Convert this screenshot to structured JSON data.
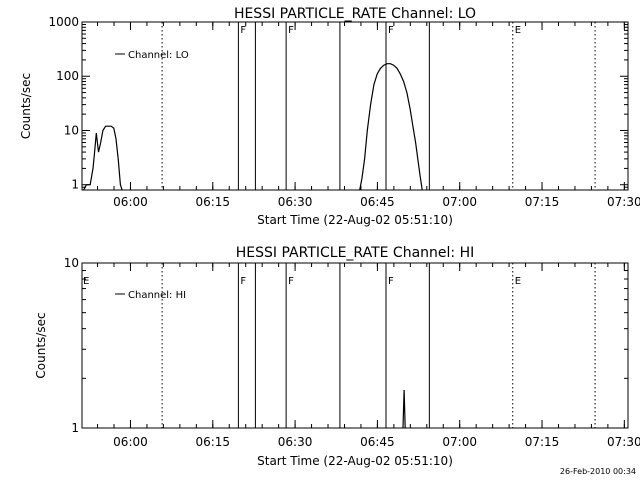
{
  "footer": {
    "timestamp": "26-Feb-2010 00:34"
  },
  "x_axis": {
    "label": "Start Time (22-Aug-02 05:51:10)",
    "range_minutes": [
      0,
      99.5
    ],
    "tick_minutes": [
      8.833,
      23.833,
      38.833,
      53.833,
      68.833,
      83.833,
      98.833
    ],
    "tick_labels": [
      "06:00",
      "06:15",
      "06:30",
      "06:45",
      "07:00",
      "07:15",
      "07:30"
    ]
  },
  "chart_data": [
    {
      "type": "line",
      "title": "HESSI PARTICLE_RATE Channel: LO",
      "ylabel": "Counts/sec",
      "xlabel": "Start Time (22-Aug-02 05:51:10)",
      "y_scale": "log",
      "ylim": [
        0.8,
        1000
      ],
      "y_ticks": [
        1,
        10,
        100,
        1000
      ],
      "y_tick_labels": [
        "1",
        "10",
        "100",
        "1000"
      ],
      "legend": {
        "label": "Channel: LO",
        "position": "top-left"
      },
      "series": [
        {
          "name": "Channel: LO",
          "x": [
            0.3,
            0.8,
            1.5,
            2.0,
            2.3,
            2.6,
            3.0,
            3.4,
            3.8,
            4.3,
            4.8,
            5.3,
            5.8,
            6.2,
            6.6,
            7.0,
            7.3,
            50.6,
            51.0,
            51.5,
            52.0,
            52.6,
            53.2,
            53.8,
            54.4,
            55.0,
            55.6,
            56.2,
            56.8,
            57.4,
            58.0,
            58.6,
            59.2,
            59.8,
            60.3,
            60.8,
            61.2,
            61.6,
            62.0
          ],
          "y": [
            0.8,
            1.0,
            1.0,
            2.0,
            4.0,
            9.0,
            4.0,
            6.0,
            10.0,
            12.0,
            12.0,
            12.0,
            11.0,
            7.0,
            3.0,
            1.0,
            0.8,
            0.8,
            1.3,
            3.0,
            10.0,
            30.0,
            70.0,
            110.0,
            140.0,
            160.0,
            170.0,
            170.0,
            160.0,
            140.0,
            110.0,
            80.0,
            50.0,
            25.0,
            12.0,
            6.0,
            3.0,
            1.5,
            0.8
          ]
        }
      ],
      "solid_markers": {
        "x": [
          28.5,
          31.6,
          37.2,
          47.0,
          55.4,
          63.3
        ],
        "labels": [
          "F",
          "",
          "F",
          "",
          "F",
          ""
        ]
      },
      "dotted_markers": {
        "x": [
          14.6,
          78.5,
          93.5
        ],
        "labels": [
          "",
          "E",
          ""
        ]
      },
      "edge_label_left": ""
    },
    {
      "type": "line",
      "title": "HESSI PARTICLE_RATE Channel: HI",
      "ylabel": "Counts/sec",
      "xlabel": "Start Time (22-Aug-02 05:51:10)",
      "y_scale": "log",
      "ylim": [
        1,
        10
      ],
      "y_ticks": [
        1,
        10
      ],
      "y_tick_labels": [
        "1",
        "10"
      ],
      "legend": {
        "label": "Channel: HI",
        "position": "top-left"
      },
      "series": [
        {
          "name": "Channel: HI",
          "x": [
            58.3,
            58.5,
            58.7,
            58.9,
            59.1
          ],
          "y": [
            1.0,
            1.0,
            1.7,
            1.0,
            1.0
          ]
        }
      ],
      "solid_markers": {
        "x": [
          28.5,
          31.6,
          37.2,
          47.0,
          55.4,
          63.3
        ],
        "labels": [
          "F",
          "",
          "F",
          "",
          "F",
          ""
        ]
      },
      "dotted_markers": {
        "x": [
          14.6,
          78.5,
          93.5
        ],
        "labels": [
          "",
          "E",
          ""
        ]
      },
      "edge_label_left": "E"
    }
  ]
}
